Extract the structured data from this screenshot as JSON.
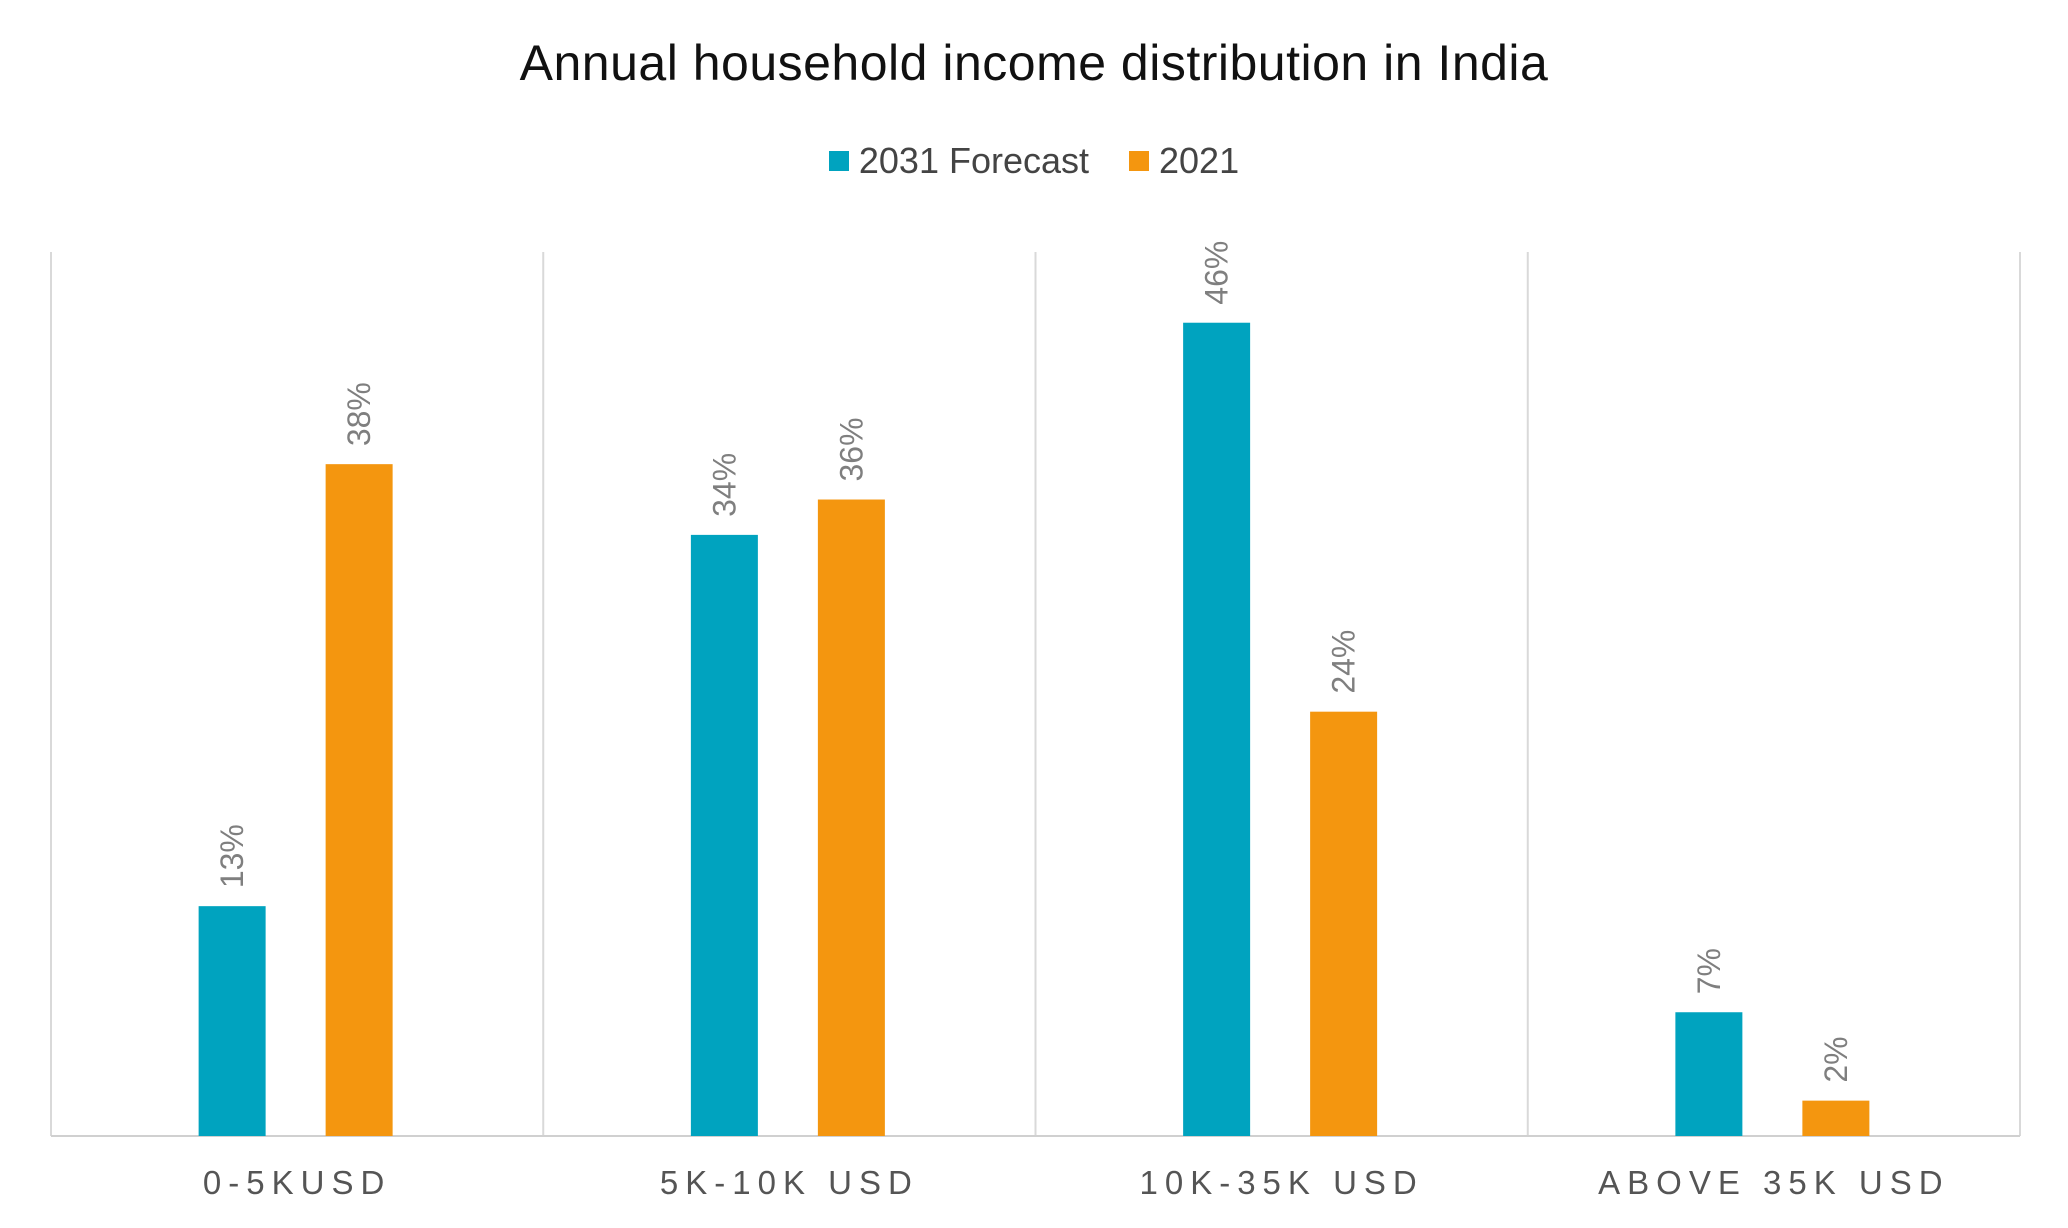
{
  "chart_data": {
    "type": "bar",
    "title": "Annual household income distribution in India",
    "categories": [
      "0-5KUSD",
      "5K-10K USD",
      "10K-35K USD",
      "ABOVE 35K USD"
    ],
    "series": [
      {
        "name": "2031 Forecast",
        "color": "#00A3BF",
        "values": [
          13,
          34,
          46,
          7
        ],
        "labels": [
          "13%",
          "34%",
          "46%",
          "7%"
        ]
      },
      {
        "name": "2021",
        "color": "#F4960F",
        "values": [
          38,
          36,
          24,
          2
        ],
        "labels": [
          "38%",
          "36%",
          "24%",
          "2%"
        ]
      }
    ],
    "ylim": [
      0,
      50
    ],
    "xlabel": "",
    "ylabel": "",
    "grid": "vertical separators between categories",
    "legend_position": "top-center",
    "data_labels": "rotated vertical above bars"
  }
}
